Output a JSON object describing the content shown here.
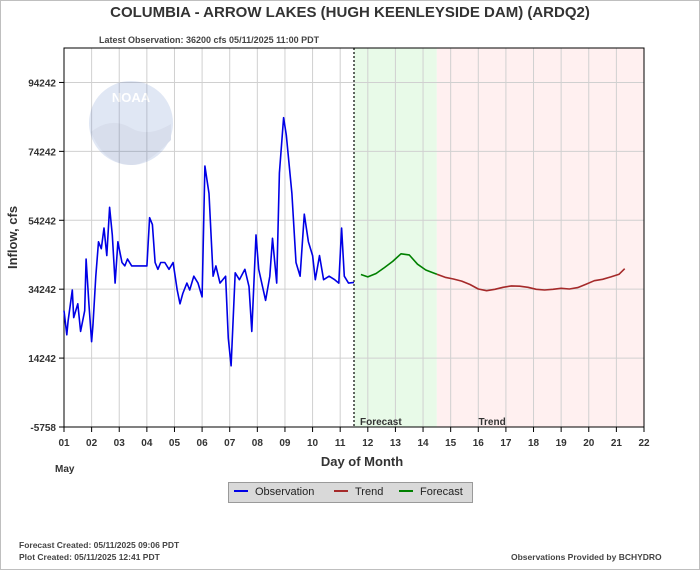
{
  "page": {
    "title": "COLUMBIA - ARROW LAKES (HUGH KEENLEYSIDE DAM)  (ARDQ2)",
    "latest_observation": "Latest Observation: 36200 cfs 05/11/2025 11:00 PDT",
    "forecast_created": "Forecast Created: 05/11/2025 09:06 PDT",
    "plot_created": "Plot Created: 05/11/2025 12:41 PDT",
    "provider": "Observations Provided by BCHYDRO",
    "watermark_logo": "NOAA"
  },
  "legend": {
    "items": [
      {
        "label": "Observation",
        "color": "#0000e6"
      },
      {
        "label": "Trend",
        "color": "#a52a2a"
      },
      {
        "label": "Forecast",
        "color": "#008000"
      }
    ]
  },
  "chart_data": {
    "type": "line",
    "xlabel": "Day of Month",
    "ylabel": "Inflow, cfs",
    "month_label": "May",
    "xlim": [
      1,
      22
    ],
    "ylim": [
      -5758,
      104242
    ],
    "x_ticks": [
      "01",
      "02",
      "03",
      "04",
      "05",
      "06",
      "07",
      "08",
      "09",
      "10",
      "11",
      "12",
      "13",
      "14",
      "15",
      "16",
      "17",
      "18",
      "19",
      "20",
      "21",
      "22"
    ],
    "y_ticks": [
      -5758,
      14242,
      34242,
      54242,
      74242,
      94242
    ],
    "grid": true,
    "region_labels": {
      "forecast": "Forecast",
      "trend": "Trend"
    },
    "regions": {
      "forecast": [
        11.5,
        14.5
      ],
      "trend": [
        14.5,
        22
      ]
    },
    "now_marker": 11.5,
    "colors": {
      "observation": "#0000e6",
      "trend": "#a52a2a",
      "forecast": "#008000",
      "forecast_bg": "#e8fae8",
      "trend_bg": "#fff0f0",
      "grid": "#d0d0d0"
    },
    "series": [
      {
        "name": "Observation",
        "x": [
          1.0,
          1.1,
          1.15,
          1.3,
          1.35,
          1.5,
          1.6,
          1.75,
          1.8,
          1.9,
          2.0,
          2.05,
          2.15,
          2.25,
          2.35,
          2.45,
          2.55,
          2.65,
          2.75,
          2.85,
          2.95,
          3.0,
          3.1,
          3.2,
          3.3,
          3.45,
          3.6,
          3.8,
          4.0,
          4.1,
          4.2,
          4.3,
          4.4,
          4.5,
          4.65,
          4.8,
          4.95,
          5.1,
          5.2,
          5.3,
          5.45,
          5.55,
          5.7,
          5.85,
          6.0,
          6.1,
          6.25,
          6.4,
          6.5,
          6.65,
          6.85,
          6.95,
          7.05,
          7.2,
          7.35,
          7.55,
          7.7,
          7.8,
          7.95,
          8.05,
          8.3,
          8.45,
          8.55,
          8.7,
          8.8,
          8.95,
          9.05,
          9.25,
          9.4,
          9.55,
          9.7,
          9.85,
          10.0,
          10.1,
          10.25,
          10.4,
          10.6,
          10.8,
          10.95,
          11.05,
          11.15,
          11.3,
          11.5
        ],
        "values": [
          28000,
          21000,
          25000,
          34000,
          26000,
          30000,
          22000,
          28000,
          43000,
          30000,
          19000,
          24000,
          38000,
          48000,
          46000,
          52000,
          44000,
          58000,
          50000,
          36000,
          48000,
          46000,
          42000,
          41000,
          43000,
          41000,
          41000,
          41000,
          41000,
          55000,
          53000,
          42000,
          40000,
          42000,
          42000,
          40000,
          42000,
          34000,
          30000,
          33000,
          36000,
          34000,
          38000,
          36000,
          32000,
          70000,
          62000,
          38000,
          41000,
          36000,
          38000,
          20000,
          12000,
          39000,
          37000,
          40000,
          35000,
          22000,
          50000,
          40000,
          31000,
          38000,
          49000,
          36000,
          68000,
          84000,
          79000,
          62000,
          42000,
          38000,
          56000,
          48000,
          44000,
          37000,
          44000,
          37000,
          38000,
          37000,
          36000,
          52000,
          38000,
          36000,
          36200
        ]
      },
      {
        "name": "Forecast",
        "x": [
          11.75,
          12.0,
          12.3,
          12.6,
          12.9,
          13.2,
          13.5,
          13.8,
          14.1,
          14.3,
          14.5
        ],
        "values": [
          38500,
          37800,
          38800,
          40500,
          42300,
          44500,
          44200,
          41500,
          39800,
          39200,
          38600
        ]
      },
      {
        "name": "Trend",
        "x": [
          14.5,
          14.8,
          15.1,
          15.4,
          15.7,
          16.0,
          16.3,
          16.6,
          16.9,
          17.2,
          17.5,
          17.8,
          18.1,
          18.4,
          18.7,
          19.0,
          19.3,
          19.6,
          19.9,
          20.2,
          20.5,
          20.8,
          21.1,
          21.3
        ],
        "values": [
          38600,
          37700,
          37200,
          36600,
          35600,
          34300,
          33800,
          34200,
          34800,
          35200,
          35100,
          34800,
          34200,
          34000,
          34200,
          34500,
          34300,
          34700,
          35700,
          36700,
          37100,
          37800,
          38600,
          40200
        ]
      }
    ]
  }
}
